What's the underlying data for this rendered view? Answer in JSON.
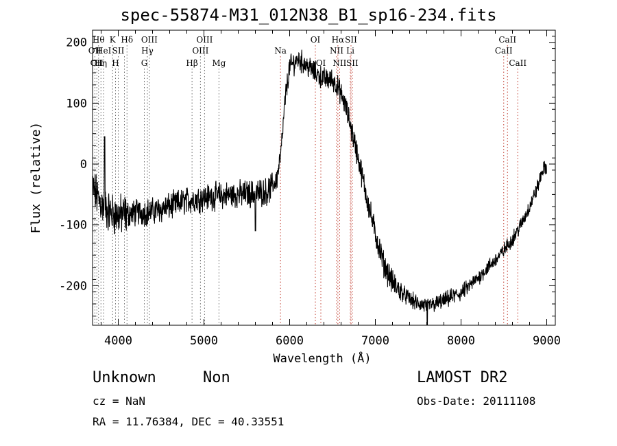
{
  "header": {
    "title": "spec-55874-M31_012N38_B1_sp16-234.fits"
  },
  "info": {
    "class_label": "Unknown",
    "subclass_label": "Non",
    "survey": "LAMOST DR2",
    "cz": "cz = NaN",
    "obs_date": "Obs-Date: 20111108",
    "radec": "RA =  11.76384, DEC =  40.33551"
  },
  "chart_data": {
    "type": "line",
    "title": "spec-55874-M31_012N38_B1_sp16-234.fits",
    "xlabel": "Wavelength (Å)",
    "ylabel": "Flux (relative)",
    "xlim": [
      3700,
      9100
    ],
    "ylim": [
      -265,
      220
    ],
    "xticks": [
      4000,
      5000,
      6000,
      7000,
      8000,
      9000
    ],
    "yticks": [
      -200,
      -100,
      0,
      100,
      200
    ],
    "grid": false,
    "series_color": "#000000",
    "line_marker_color": "#c0392b",
    "spectrum_anchors": {
      "x": [
        3700,
        3800,
        3900,
        4000,
        4200,
        4400,
        4600,
        4800,
        5000,
        5200,
        5400,
        5600,
        5750,
        5850,
        5900,
        5950,
        6000,
        6100,
        6200,
        6300,
        6400,
        6500,
        6550,
        6600,
        6650,
        6700,
        6750,
        6800,
        6900,
        7000,
        7100,
        7200,
        7300,
        7400,
        7500,
        7600,
        7700,
        7800,
        7900,
        8000,
        8100,
        8200,
        8300,
        8400,
        8500,
        8600,
        8700,
        8800,
        8900,
        8950,
        9000
      ],
      "y": [
        -40,
        -65,
        -80,
        -85,
        -80,
        -78,
        -70,
        -60,
        -55,
        -52,
        -50,
        -48,
        -45,
        -25,
        20,
        110,
        160,
        172,
        162,
        150,
        140,
        138,
        130,
        115,
        95,
        70,
        40,
        10,
        -55,
        -115,
        -165,
        -195,
        -210,
        -222,
        -230,
        -233,
        -230,
        -225,
        -218,
        -212,
        -200,
        -187,
        -172,
        -158,
        -142,
        -123,
        -100,
        -70,
        -35,
        -10,
        -5
      ]
    },
    "spectral_lines": [
      {
        "wavelength": 3727,
        "row": 1,
        "label": "OII"
      },
      {
        "wavelength": 3750,
        "row": 2,
        "label": "OII"
      },
      {
        "wavelength": 3770,
        "row": 0,
        "label": "Hθ"
      },
      {
        "wavelength": 3798,
        "row": 2,
        "label": "Hη"
      },
      {
        "wavelength": 3830,
        "row": 1,
        "label": "HeI"
      },
      {
        "wavelength": 3934,
        "row": 0,
        "label": "K"
      },
      {
        "wavelength": 3968,
        "row": 2,
        "label": "H"
      },
      {
        "wavelength": 4000,
        "row": 1,
        "label": "SII"
      },
      {
        "wavelength": 4072,
        "row": 1,
        "label": ""
      },
      {
        "wavelength": 4102,
        "row": 0,
        "label": "Hδ"
      },
      {
        "wavelength": 4304,
        "row": 2,
        "label": "G"
      },
      {
        "wavelength": 4340,
        "row": 1,
        "label": "Hγ"
      },
      {
        "wavelength": 4363,
        "row": 0,
        "label": "OIII"
      },
      {
        "wavelength": 4861,
        "row": 2,
        "label": "Hβ"
      },
      {
        "wavelength": 4959,
        "row": 1,
        "label": "OIII"
      },
      {
        "wavelength": 5007,
        "row": 0,
        "label": "OIII"
      },
      {
        "wavelength": 5175,
        "row": 2,
        "label": "Mg"
      },
      {
        "wavelength": 5893,
        "row": 1,
        "label": "Na"
      },
      {
        "wavelength": 6300,
        "row": 0,
        "label": "OI"
      },
      {
        "wavelength": 6364,
        "row": 2,
        "label": "OI"
      },
      {
        "wavelength": 6548,
        "row": 1,
        "label": "NII"
      },
      {
        "wavelength": 6563,
        "row": 0,
        "label": "Hα"
      },
      {
        "wavelength": 6583,
        "row": 2,
        "label": "NII"
      },
      {
        "wavelength": 6708,
        "row": 1,
        "label": "Li"
      },
      {
        "wavelength": 6716,
        "row": 0,
        "label": "SII"
      },
      {
        "wavelength": 6731,
        "row": 2,
        "label": "SII"
      },
      {
        "wavelength": 8498,
        "row": 1,
        "label": "CaII"
      },
      {
        "wavelength": 8542,
        "row": 0,
        "label": "CaII"
      },
      {
        "wavelength": 8662,
        "row": 2,
        "label": "CaII"
      }
    ]
  }
}
